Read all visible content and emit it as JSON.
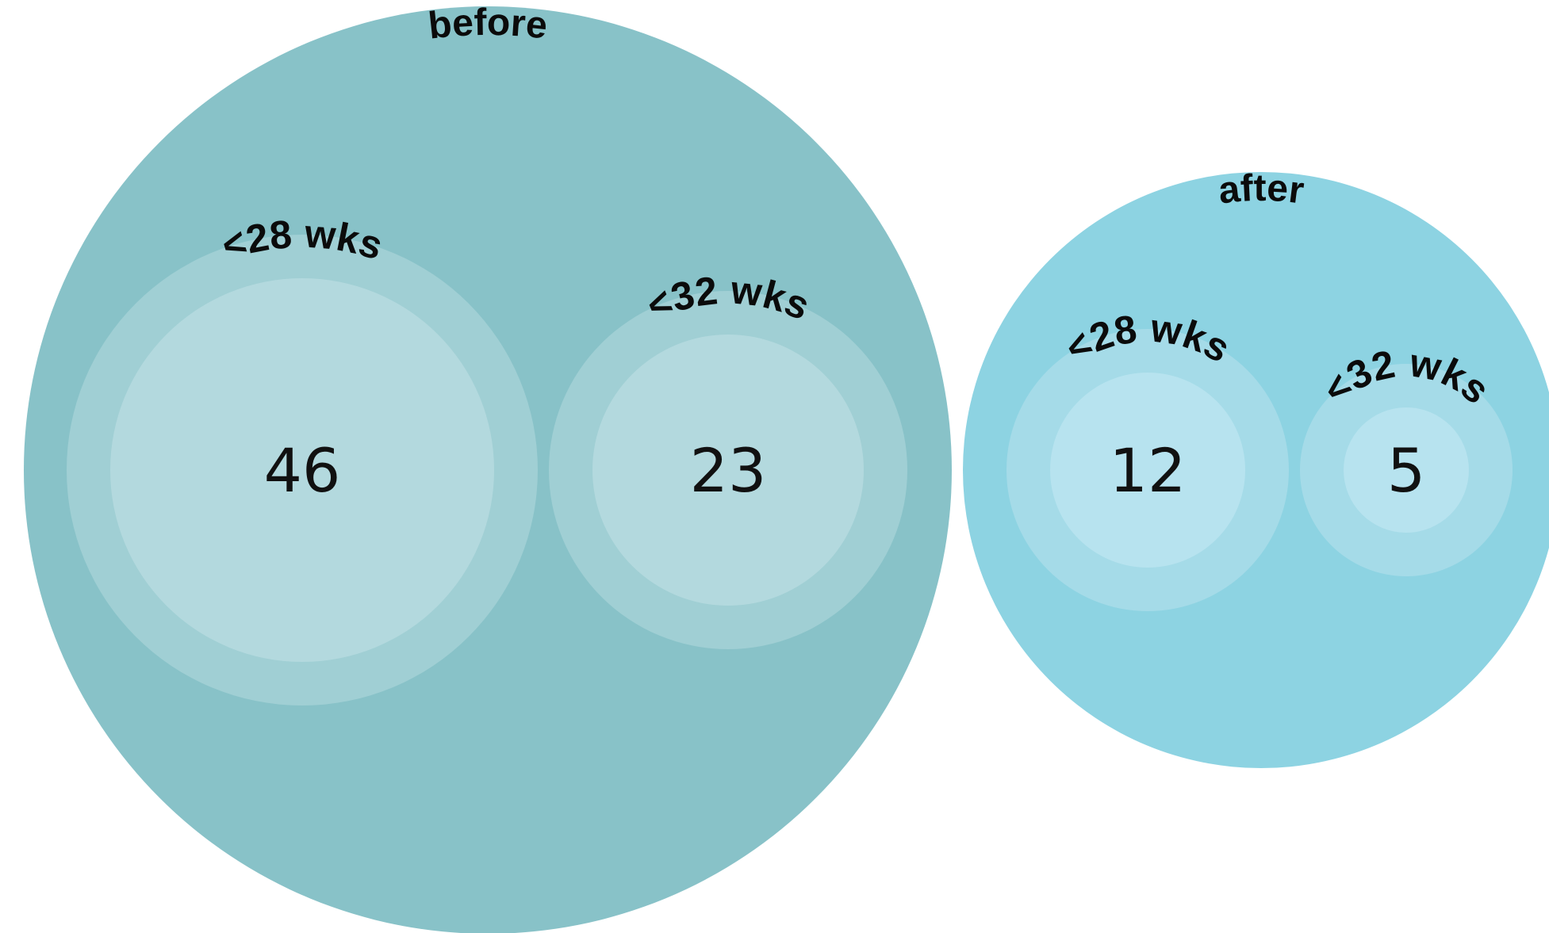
{
  "chart_data": {
    "type": "packed-circles",
    "groups": [
      {
        "name": "before",
        "color": "#88c2c8",
        "children": [
          {
            "label": "<28 wks",
            "value": 46,
            "ring_color": "#a0cfd4",
            "fill_color": "#b3d9de"
          },
          {
            "label": "<32 wks",
            "value": 23,
            "ring_color": "#a0cfd4",
            "fill_color": "#b3d9de"
          }
        ]
      },
      {
        "name": "after",
        "color": "#8dd3e2",
        "children": [
          {
            "label": "<28 wks",
            "value": 12,
            "ring_color": "#a5dbe8",
            "fill_color": "#b7e3ef"
          },
          {
            "label": "<32 wks",
            "value": 5,
            "ring_color": "#a5dbe8",
            "fill_color": "#b7e3ef"
          }
        ]
      }
    ]
  }
}
